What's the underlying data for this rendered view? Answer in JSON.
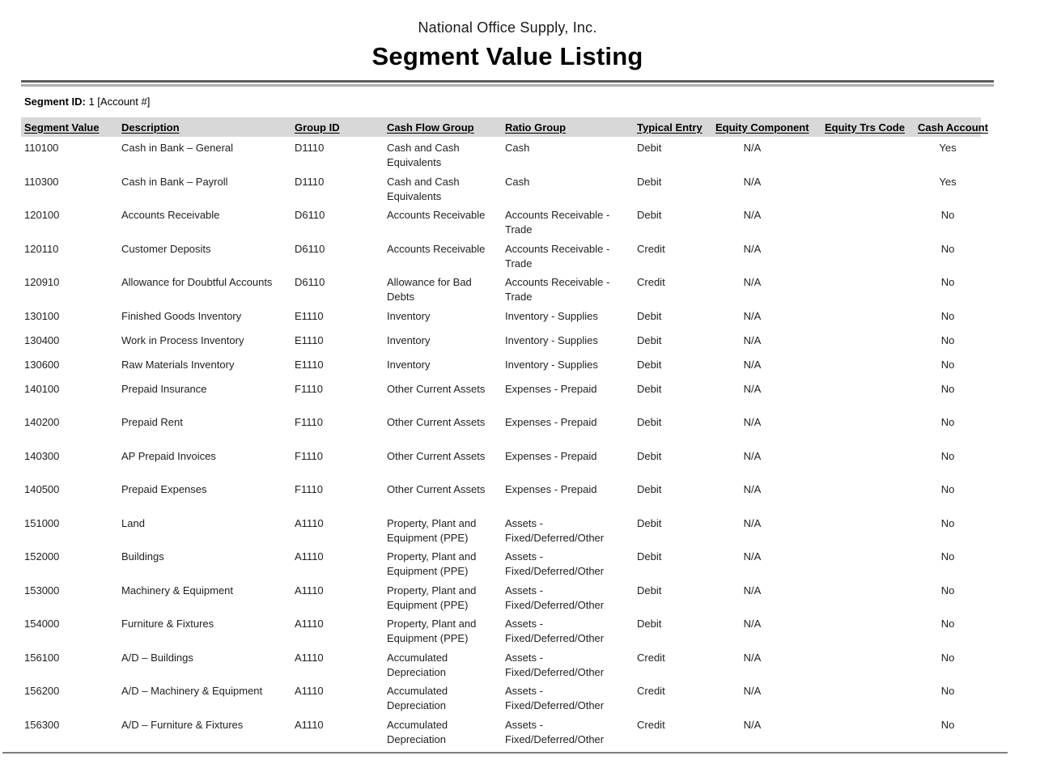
{
  "report": {
    "company": "National Office Supply, Inc.",
    "title": "Segment Value Listing",
    "segment_id_label": "Segment ID:",
    "segment_id_value": "1 [Account #]",
    "table": {
      "columns": [
        "Segment Value",
        "Description",
        "Group ID",
        "Cash Flow Group",
        "Ratio Group",
        "Typical Entry",
        "Equity Component",
        "Equity Trs Code",
        "Cash Account"
      ],
      "rows": [
        [
          "110100",
          "Cash in Bank – General",
          "D1110",
          "Cash and Cash Equivalents",
          "Cash",
          "Debit",
          "N/A",
          "",
          "Yes"
        ],
        [
          "110300",
          "Cash in Bank – Payroll",
          "D1110",
          "Cash and Cash Equivalents",
          "Cash",
          "Debit",
          "N/A",
          "",
          "Yes"
        ],
        [
          "120100",
          "Accounts Receivable",
          "D6110",
          "Accounts Receivable",
          "Accounts Receivable - Trade",
          "Debit",
          "N/A",
          "",
          "No"
        ],
        [
          "120110",
          "Customer Deposits",
          "D6110",
          "Accounts Receivable",
          "Accounts Receivable - Trade",
          "Credit",
          "N/A",
          "",
          "No"
        ],
        [
          "120910",
          "Allowance for Doubtful Accounts",
          "D6110",
          "Allowance for Bad Debts",
          "Accounts Receivable - Trade",
          "Credit",
          "N/A",
          "",
          "No"
        ],
        [
          "130100",
          "Finished Goods Inventory",
          "E1110",
          "Inventory",
          "Inventory - Supplies",
          "Debit",
          "N/A",
          "",
          "No"
        ],
        [
          "130400",
          "Work in Process Inventory",
          "E1110",
          "Inventory",
          "Inventory - Supplies",
          "Debit",
          "N/A",
          "",
          "No"
        ],
        [
          "130600",
          "Raw Materials Inventory",
          "E1110",
          "Inventory",
          "Inventory - Supplies",
          "Debit",
          "N/A",
          "",
          "No"
        ],
        [
          "140100",
          "Prepaid Insurance",
          "F1110",
          "Other Current Assets",
          "Expenses - Prepaid",
          "Debit",
          "N/A",
          "",
          "No"
        ],
        [
          "140200",
          "Prepaid Rent",
          "F1110",
          "Other Current Assets",
          "Expenses - Prepaid",
          "Debit",
          "N/A",
          "",
          "No"
        ],
        [
          "140300",
          "AP Prepaid Invoices",
          "F1110",
          "Other Current Assets",
          "Expenses - Prepaid",
          "Debit",
          "N/A",
          "",
          "No"
        ],
        [
          "140500",
          "Prepaid Expenses",
          "F1110",
          "Other Current Assets",
          "Expenses - Prepaid",
          "Debit",
          "N/A",
          "",
          "No"
        ],
        [
          "151000",
          "Land",
          "A1110",
          "Property, Plant and Equipment (PPE)",
          "Assets - Fixed/Deferred/Other",
          "Debit",
          "N/A",
          "",
          "No"
        ],
        [
          "152000",
          "Buildings",
          "A1110",
          "Property, Plant and Equipment (PPE)",
          "Assets - Fixed/Deferred/Other",
          "Debit",
          "N/A",
          "",
          "No"
        ],
        [
          "153000",
          "Machinery & Equipment",
          "A1110",
          "Property, Plant and Equipment (PPE)",
          "Assets - Fixed/Deferred/Other",
          "Debit",
          "N/A",
          "",
          "No"
        ],
        [
          "154000",
          "Furniture & Fixtures",
          "A1110",
          "Property, Plant and Equipment (PPE)",
          "Assets - Fixed/Deferred/Other",
          "Debit",
          "N/A",
          "",
          "No"
        ],
        [
          "156100",
          "A/D – Buildings",
          "A1110",
          "Accumulated Depreciation",
          "Assets - Fixed/Deferred/Other",
          "Credit",
          "N/A",
          "",
          "No"
        ],
        [
          "156200",
          "A/D – Machinery & Equipment",
          "A1110",
          "Accumulated Depreciation",
          "Assets - Fixed/Deferred/Other",
          "Credit",
          "N/A",
          "",
          "No"
        ],
        [
          "156300",
          "A/D – Furniture & Fixtures",
          "A1110",
          "Accumulated Depreciation",
          "Assets - Fixed/Deferred/Other",
          "Credit",
          "N/A",
          "",
          "No"
        ]
      ]
    }
  }
}
